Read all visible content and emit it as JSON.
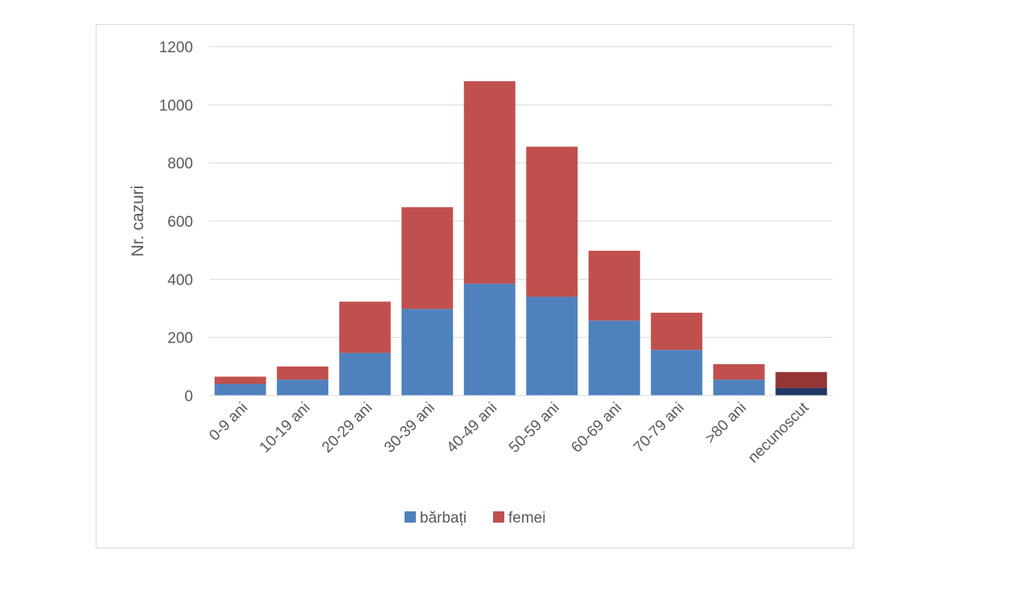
{
  "chart_data": {
    "type": "bar",
    "stacked": true,
    "title": "",
    "xlabel": "",
    "ylabel": "Nr. cazuri",
    "ylim": [
      0,
      1200
    ],
    "yticks": [
      0,
      200,
      400,
      600,
      800,
      1000,
      1200
    ],
    "grid": true,
    "legend_position": "bottom",
    "categories": [
      "0-9 ani",
      "10-19 ani",
      "20-29 ani",
      "30-39 ani",
      "40-49 ani",
      "50-59 ani",
      "60-69 ani",
      "70-79 ani",
      ">80 ani",
      "necunoscut"
    ],
    "series": [
      {
        "name": "bărbați",
        "color": "#4f81bd",
        "values": [
          40,
          55,
          147,
          298,
          385,
          340,
          258,
          157,
          55,
          26
        ]
      },
      {
        "name": "femei",
        "color": "#c0504d",
        "values": [
          25,
          45,
          176,
          350,
          696,
          516,
          240,
          128,
          53,
          55
        ]
      }
    ],
    "highlight_category_colors": {
      "necunoscut": [
        "#1f3864",
        "#943634"
      ]
    }
  }
}
